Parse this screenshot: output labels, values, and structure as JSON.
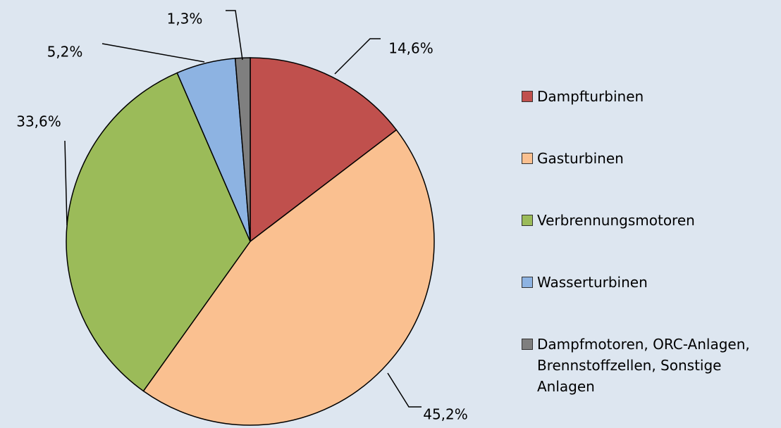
{
  "chart_data": {
    "type": "pie",
    "categories": [
      "Dampfturbinen",
      "Gasturbinen",
      "Verbrennungsmotoren",
      "Wasserturbinen",
      "Dampfmotoren, ORC-Anlagen, Brennstoffzellen, Sonstige Anlagen"
    ],
    "values": [
      14.6,
      45.2,
      33.6,
      5.2,
      1.3
    ],
    "value_labels": [
      "14,6%",
      "45,2%",
      "33,6%",
      "5,2%",
      "1,3%"
    ],
    "colors": [
      "#c0504d",
      "#fac090",
      "#9bbb59",
      "#8db3e2",
      "#7f7f7f"
    ],
    "legend": "right"
  }
}
